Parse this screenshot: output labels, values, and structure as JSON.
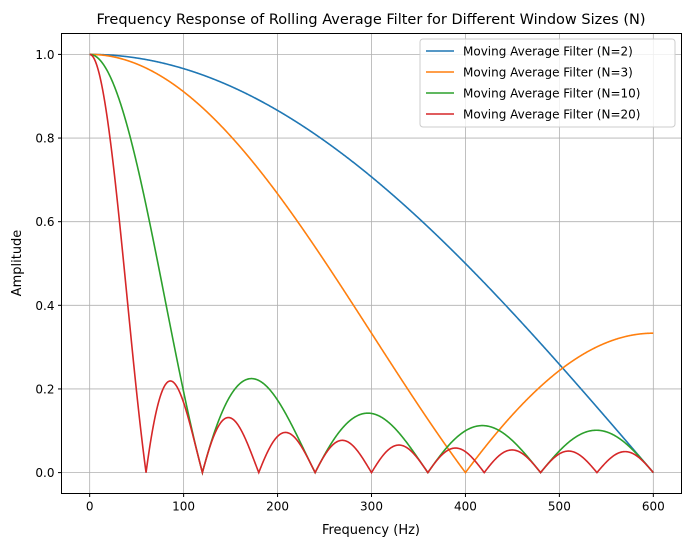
{
  "chart_data": {
    "type": "line",
    "title": "Frequency Response of Rolling Average Filter for Different Window Sizes (N)",
    "xlabel": "Frequency (Hz)",
    "ylabel": "Amplitude",
    "xlim": [
      -30,
      630
    ],
    "ylim": [
      -0.05,
      1.05
    ],
    "x_range": [
      0,
      600
    ],
    "sample_rate_hz": 1200,
    "response": "|sin(pi*f*N/fs) / (N*sin(pi*f/fs))|",
    "xticks": [
      "0",
      "100",
      "200",
      "300",
      "400",
      "500",
      "600"
    ],
    "yticks": [
      "0.0",
      "0.2",
      "0.4",
      "0.6",
      "0.8",
      "1.0"
    ],
    "grid": true,
    "legend_position": "top-right",
    "series": [
      {
        "name": "Moving Average Filter (N=2)",
        "window": 2,
        "color": "#1f77b4"
      },
      {
        "name": "Moving Average Filter (N=3)",
        "window": 3,
        "color": "#ff7f0e"
      },
      {
        "name": "Moving Average Filter (N=10)",
        "window": 10,
        "color": "#2ca02c"
      },
      {
        "name": "Moving Average Filter (N=20)",
        "window": 20,
        "color": "#d62728"
      }
    ]
  }
}
